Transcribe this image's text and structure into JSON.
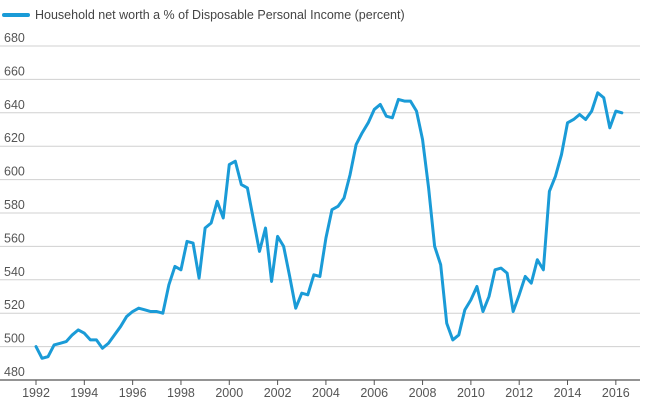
{
  "chart_data": {
    "type": "line",
    "title": "",
    "xlabel": "",
    "ylabel": "",
    "legend": "top-left",
    "grid": true,
    "xlim": [
      1992,
      2017
    ],
    "ylim": [
      480,
      680
    ],
    "x_ticks": [
      "1992",
      "1994",
      "1996",
      "1998",
      "2000",
      "2002",
      "2004",
      "2006",
      "2008",
      "2010",
      "2012",
      "2014",
      "2016"
    ],
    "y_ticks": [
      "480",
      "500",
      "520",
      "540",
      "560",
      "580",
      "600",
      "620",
      "640",
      "660",
      "680"
    ],
    "colors": {
      "series": "#1a9bd7",
      "grid": "#d0d0d0",
      "axis": "#555555"
    },
    "series": [
      {
        "name": "Household net worth a % of Disposable Personal Income (percent)",
        "points": [
          [
            1992.0,
            500
          ],
          [
            1992.25,
            493
          ],
          [
            1992.5,
            494
          ],
          [
            1992.75,
            501
          ],
          [
            1993.0,
            502
          ],
          [
            1993.25,
            503
          ],
          [
            1993.5,
            507
          ],
          [
            1993.75,
            510
          ],
          [
            1994.0,
            508
          ],
          [
            1994.25,
            504
          ],
          [
            1994.5,
            504
          ],
          [
            1994.75,
            499
          ],
          [
            1995.0,
            502
          ],
          [
            1995.25,
            507
          ],
          [
            1995.5,
            512
          ],
          [
            1995.75,
            518
          ],
          [
            1996.0,
            521
          ],
          [
            1996.25,
            523
          ],
          [
            1996.5,
            522
          ],
          [
            1996.75,
            521
          ],
          [
            1997.0,
            521
          ],
          [
            1997.25,
            520
          ],
          [
            1997.5,
            537
          ],
          [
            1997.75,
            548
          ],
          [
            1998.0,
            546
          ],
          [
            1998.25,
            563
          ],
          [
            1998.5,
            562
          ],
          [
            1998.75,
            541
          ],
          [
            1999.0,
            571
          ],
          [
            1999.25,
            574
          ],
          [
            1999.5,
            587
          ],
          [
            1999.75,
            577
          ],
          [
            2000.0,
            609
          ],
          [
            2000.25,
            611
          ],
          [
            2000.5,
            597
          ],
          [
            2000.75,
            595
          ],
          [
            2001.0,
            576
          ],
          [
            2001.25,
            557
          ],
          [
            2001.5,
            571
          ],
          [
            2001.75,
            539
          ],
          [
            2002.0,
            566
          ],
          [
            2002.25,
            560
          ],
          [
            2002.5,
            542
          ],
          [
            2002.75,
            523
          ],
          [
            2003.0,
            532
          ],
          [
            2003.25,
            531
          ],
          [
            2003.5,
            543
          ],
          [
            2003.75,
            542
          ],
          [
            2004.0,
            565
          ],
          [
            2004.25,
            582
          ],
          [
            2004.5,
            584
          ],
          [
            2004.75,
            589
          ],
          [
            2005.0,
            603
          ],
          [
            2005.25,
            621
          ],
          [
            2005.5,
            628
          ],
          [
            2005.75,
            634
          ],
          [
            2006.0,
            642
          ],
          [
            2006.25,
            645
          ],
          [
            2006.5,
            638
          ],
          [
            2006.75,
            637
          ],
          [
            2007.0,
            648
          ],
          [
            2007.25,
            647
          ],
          [
            2007.5,
            647
          ],
          [
            2007.75,
            641
          ],
          [
            2008.0,
            624
          ],
          [
            2008.25,
            595
          ],
          [
            2008.5,
            560
          ],
          [
            2008.75,
            549
          ],
          [
            2009.0,
            514
          ],
          [
            2009.25,
            504
          ],
          [
            2009.5,
            507
          ],
          [
            2009.75,
            522
          ],
          [
            2010.0,
            528
          ],
          [
            2010.25,
            536
          ],
          [
            2010.5,
            521
          ],
          [
            2010.75,
            530
          ],
          [
            2011.0,
            546
          ],
          [
            2011.25,
            547
          ],
          [
            2011.5,
            544
          ],
          [
            2011.75,
            521
          ],
          [
            2012.0,
            531
          ],
          [
            2012.25,
            542
          ],
          [
            2012.5,
            538
          ],
          [
            2012.75,
            552
          ],
          [
            2013.0,
            546
          ],
          [
            2013.25,
            593
          ],
          [
            2013.5,
            602
          ],
          [
            2013.75,
            615
          ],
          [
            2014.0,
            634
          ],
          [
            2014.25,
            636
          ],
          [
            2014.5,
            639
          ],
          [
            2014.75,
            636
          ],
          [
            2015.0,
            641
          ],
          [
            2015.25,
            652
          ],
          [
            2015.5,
            649
          ],
          [
            2015.75,
            631
          ],
          [
            2016.0,
            641
          ],
          [
            2016.25,
            640
          ]
        ]
      }
    ]
  }
}
